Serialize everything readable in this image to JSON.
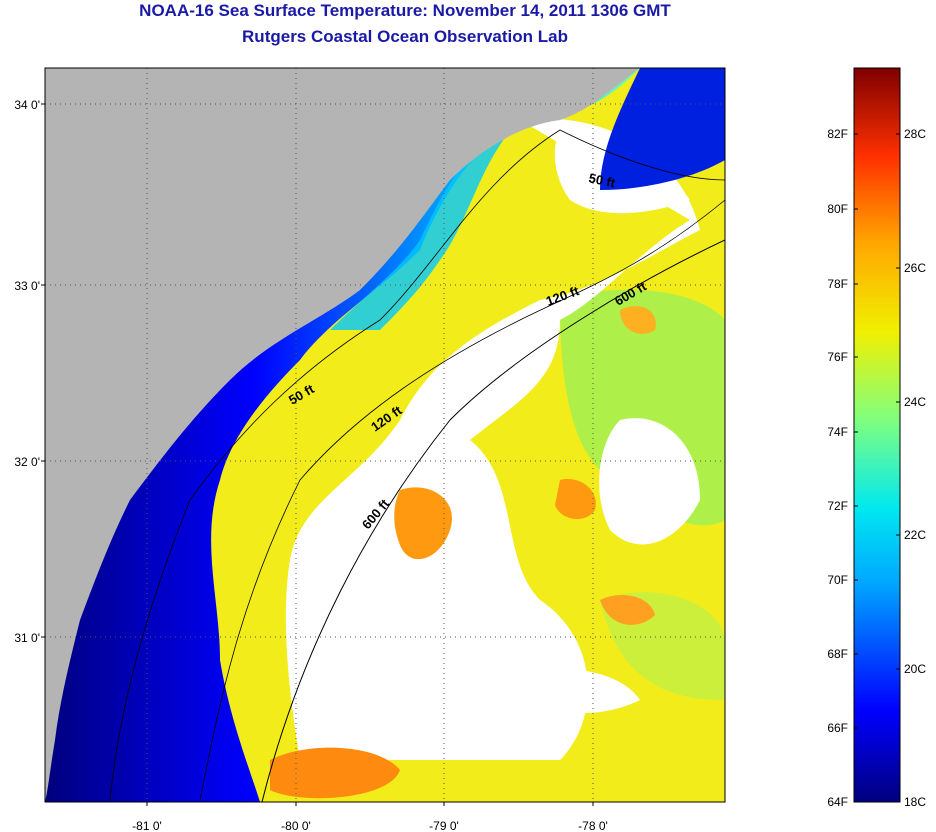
{
  "title": "NOAA-16 Sea Surface Temperature:  November 14, 2011 1306 GMT",
  "subtitle": "Rutgers Coastal Ocean Observation Lab",
  "map": {
    "lat_labels": [
      "34 0'",
      "33 0'",
      "32 0'",
      "31 0'"
    ],
    "lon_labels": [
      "-81 0'",
      "-80 0'",
      "-79 0'",
      "-78 0'"
    ],
    "contours": [
      {
        "label": "50 ft"
      },
      {
        "label": "50 ft"
      },
      {
        "label": "120 ft"
      },
      {
        "label": "120 ft"
      },
      {
        "label": "600 ft"
      },
      {
        "label": "600 ft"
      }
    ]
  },
  "colorbar": {
    "f_labels": [
      "82F",
      "80F",
      "78F",
      "76F",
      "74F",
      "72F",
      "70F",
      "68F",
      "66F",
      "64F"
    ],
    "c_labels": [
      "28C",
      "26C",
      "24C",
      "22C",
      "20C",
      "18C"
    ],
    "colors": [
      "#00007f",
      "#0000ff",
      "#00a8ff",
      "#00e8f0",
      "#7fff7f",
      "#f0f000",
      "#ffa800",
      "#ff3000",
      "#7f0000"
    ]
  }
}
